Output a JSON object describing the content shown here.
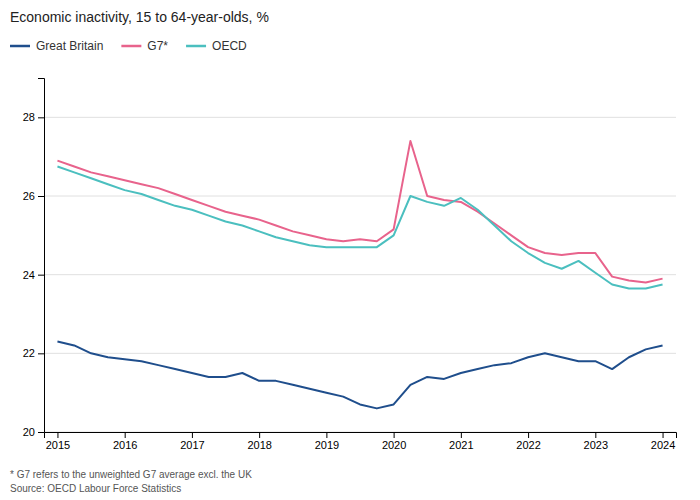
{
  "chart_data": {
    "type": "line",
    "title": "Economic inactivity, 15 to 64-year-olds, %",
    "annotations": [
      "* G7 refers to the unweighted G7 average excl. the UK",
      "Source: OECD Labour Force Statistics"
    ],
    "x": [
      2015.0,
      2015.25,
      2015.5,
      2015.75,
      2016.0,
      2016.25,
      2016.5,
      2016.75,
      2017.0,
      2017.25,
      2017.5,
      2017.75,
      2018.0,
      2018.25,
      2018.5,
      2018.75,
      2019.0,
      2019.25,
      2019.5,
      2019.75,
      2020.0,
      2020.25,
      2020.5,
      2020.75,
      2021.0,
      2021.25,
      2021.5,
      2021.75,
      2022.0,
      2022.25,
      2022.5,
      2022.75,
      2023.0,
      2023.25,
      2023.5,
      2023.75,
      2024.0
    ],
    "series": [
      {
        "name": "Great Britain",
        "color": "#1f4e8c",
        "values": [
          22.3,
          22.2,
          22.0,
          21.9,
          21.85,
          21.8,
          21.7,
          21.6,
          21.5,
          21.4,
          21.4,
          21.5,
          21.3,
          21.3,
          21.2,
          21.1,
          21.0,
          20.9,
          20.7,
          20.6,
          20.7,
          21.2,
          21.4,
          21.35,
          21.5,
          21.6,
          21.7,
          21.75,
          21.9,
          22.0,
          21.9,
          21.8,
          21.8,
          21.6,
          21.9,
          22.1,
          22.2
        ]
      },
      {
        "name": "G7*",
        "color": "#e8638c",
        "values": [
          26.9,
          26.75,
          26.6,
          26.5,
          26.4,
          26.3,
          26.2,
          26.05,
          25.9,
          25.75,
          25.6,
          25.5,
          25.4,
          25.25,
          25.1,
          25.0,
          24.9,
          24.85,
          24.9,
          24.85,
          25.15,
          27.4,
          26.0,
          25.9,
          25.85,
          25.6,
          25.3,
          25.0,
          24.7,
          24.55,
          24.5,
          24.55,
          24.55,
          23.95,
          23.85,
          23.8,
          23.9
        ]
      },
      {
        "name": "OECD",
        "color": "#4bbfbf",
        "values": [
          26.75,
          26.6,
          26.45,
          26.3,
          26.15,
          26.05,
          25.9,
          25.75,
          25.65,
          25.5,
          25.35,
          25.25,
          25.1,
          24.95,
          24.85,
          24.75,
          24.7,
          24.7,
          24.7,
          24.7,
          25.0,
          26.0,
          25.85,
          25.75,
          25.95,
          25.65,
          25.25,
          24.85,
          24.55,
          24.3,
          24.15,
          24.35,
          24.05,
          23.75,
          23.65,
          23.65,
          23.75
        ]
      }
    ],
    "xlim": [
      2014.8,
      2024.2
    ],
    "xticks": [
      2015,
      2016,
      2017,
      2018,
      2019,
      2020,
      2021,
      2022,
      2023,
      2024
    ],
    "ylim": [
      20,
      29
    ],
    "yticks": [
      20,
      22,
      24,
      26,
      28
    ],
    "grid": "y",
    "legend": "top"
  }
}
